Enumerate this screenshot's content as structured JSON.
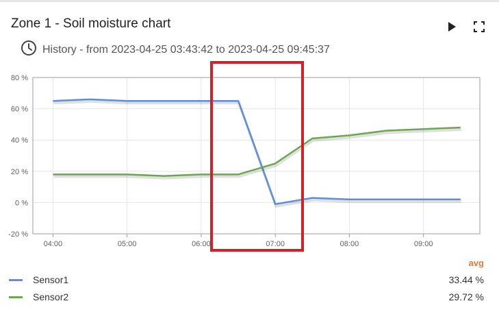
{
  "header": {
    "title": "Zone 1 - Soil moisture chart",
    "subtitle": "History - from 2023-04-25 03:43:42 to 2023-04-25 09:45:37",
    "play_icon": "play-icon",
    "fullscreen_icon": "fullscreen-icon",
    "history_icon": "clock-icon"
  },
  "chart_data": {
    "type": "line",
    "x_ticks": [
      "04:00",
      "05:00",
      "06:00",
      "07:00",
      "08:00",
      "09:00"
    ],
    "y_ticks": [
      "80 %",
      "60 %",
      "40 %",
      "20 %",
      "0 %",
      "-20 %"
    ],
    "ylim": [
      -20,
      80
    ],
    "xlim": [
      "03:43:42",
      "09:45:37"
    ],
    "grid": true,
    "series": [
      {
        "name": "Sensor1",
        "color": "#5b8fd9",
        "x": [
          "04:00",
          "04:30",
          "05:00",
          "05:30",
          "06:00",
          "06:30",
          "07:00",
          "07:30",
          "08:00",
          "08:30",
          "09:00",
          "09:30"
        ],
        "y": [
          65,
          66,
          65,
          65,
          65,
          65,
          -1,
          3,
          2,
          2,
          2,
          2
        ]
      },
      {
        "name": "Sensor2",
        "color": "#6aa84f",
        "x": [
          "04:00",
          "04:30",
          "05:00",
          "05:30",
          "06:00",
          "06:30",
          "07:00",
          "07:30",
          "08:00",
          "08:30",
          "09:00",
          "09:30"
        ],
        "y": [
          18,
          18,
          18,
          17,
          18,
          18,
          25,
          41,
          43,
          46,
          47,
          48
        ]
      }
    ]
  },
  "legend": {
    "header": "avg",
    "items": [
      {
        "name": "Sensor1",
        "value": "33.44 %",
        "color": "#5b8fd9"
      },
      {
        "name": "Sensor2",
        "value": "29.72 %",
        "color": "#6aa84f"
      }
    ]
  },
  "annotation_color": "#d42027"
}
